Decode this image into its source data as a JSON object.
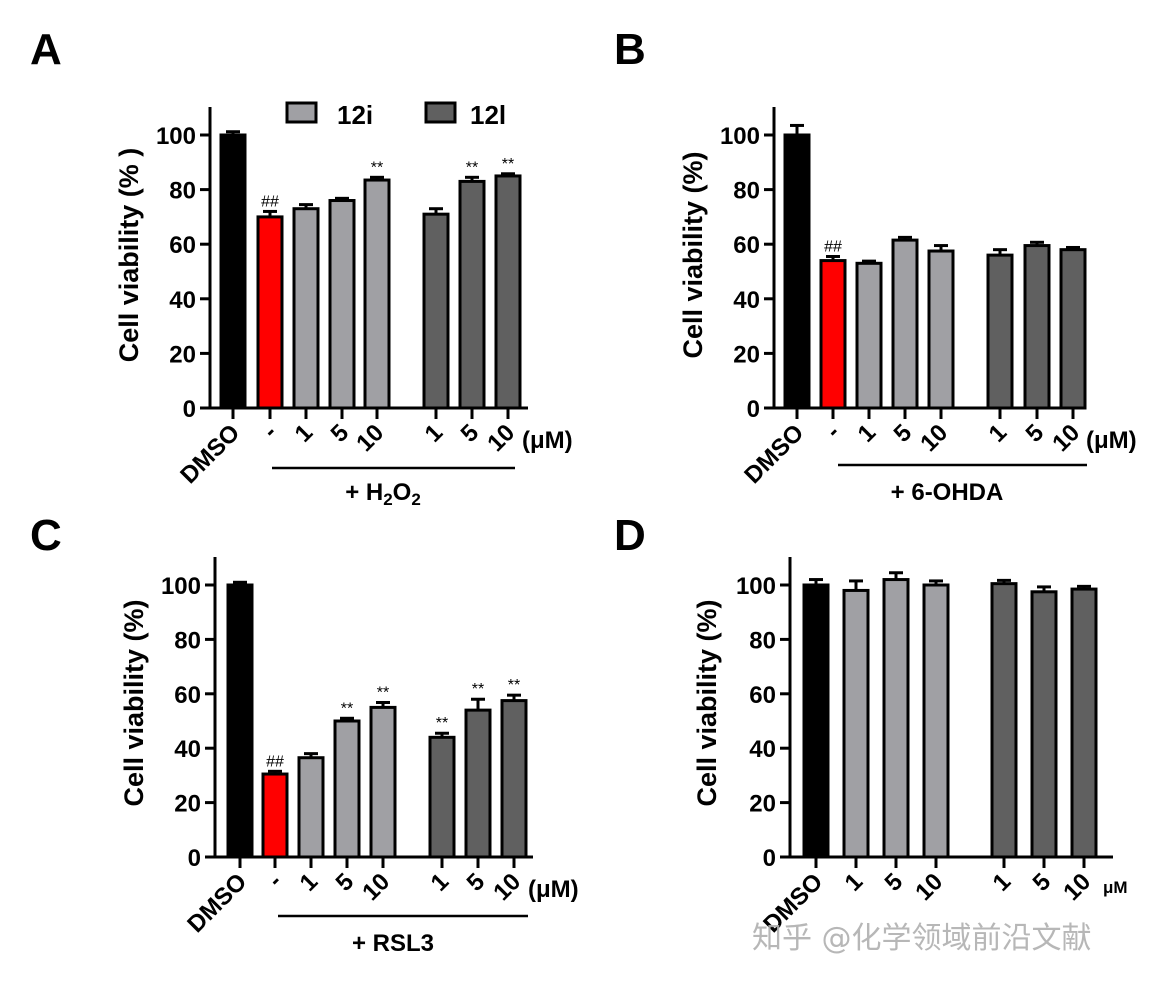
{
  "figure": {
    "watermark": "知乎 @化学领域前沿文献",
    "colors": {
      "dmso": "#000000",
      "model": "#ff0000",
      "12i": "#a0a0a4",
      "12l": "#606060",
      "outline": "#000000"
    },
    "legend": [
      {
        "label": "12i",
        "color_key": "12i"
      },
      {
        "label": "12l",
        "color_key": "12l"
      }
    ]
  },
  "chart_data": [
    {
      "panel": "A",
      "type": "bar",
      "ylabel": "Cell viability (% )",
      "ylim": [
        0,
        110
      ],
      "yticks": [
        0,
        20,
        40,
        60,
        80,
        100
      ],
      "unit_label": "(μM)",
      "treatment_label": "+ H₂O₂",
      "treatment_main": "+ H",
      "legend_shown": true,
      "legend_placement": "top",
      "categories": [
        "DMSO",
        "-",
        "1",
        "5",
        "10",
        "1",
        "5",
        "10"
      ],
      "groups": [
        "dmso",
        "model",
        "12i",
        "12i",
        "12i",
        "12l",
        "12l",
        "12l"
      ],
      "values": [
        100,
        70,
        73,
        76,
        83.5,
        71,
        83,
        85
      ],
      "errors": [
        1.2,
        2,
        1.5,
        0.8,
        1,
        2,
        1.5,
        0.8
      ],
      "annotations": [
        "",
        "##",
        "",
        "",
        "**",
        "",
        "**",
        "**"
      ]
    },
    {
      "panel": "B",
      "type": "bar",
      "ylabel": "Cell viability (%)",
      "ylim": [
        0,
        110
      ],
      "yticks": [
        0,
        20,
        40,
        60,
        80,
        100
      ],
      "unit_label": "(μM)",
      "treatment_label": "+ 6-OHDA",
      "legend_shown": false,
      "categories": [
        "DMSO",
        "-",
        "1",
        "5",
        "10",
        "1",
        "5",
        "10"
      ],
      "groups": [
        "dmso",
        "model",
        "12i",
        "12i",
        "12i",
        "12l",
        "12l",
        "12l"
      ],
      "values": [
        100,
        54,
        53,
        61.5,
        57.5,
        56,
        59.5,
        58
      ],
      "errors": [
        3.5,
        1.5,
        0.8,
        1,
        2,
        2,
        1.2,
        0.8
      ],
      "annotations": [
        "",
        "##",
        "",
        "",
        "",
        "",
        "",
        ""
      ]
    },
    {
      "panel": "C",
      "type": "bar",
      "ylabel": "Cell viability (%)",
      "ylim": [
        0,
        110
      ],
      "yticks": [
        0,
        20,
        40,
        60,
        80,
        100
      ],
      "unit_label": "(μM)",
      "treatment_label": "+ RSL3",
      "legend_shown": false,
      "categories": [
        "DMSO",
        "-",
        "1",
        "5",
        "10",
        "1",
        "5",
        "10"
      ],
      "groups": [
        "dmso",
        "model",
        "12i",
        "12i",
        "12i",
        "12l",
        "12l",
        "12l"
      ],
      "values": [
        100,
        30.5,
        36.5,
        50,
        55,
        44,
        54,
        57.5
      ],
      "errors": [
        1,
        1,
        1.5,
        1,
        1.8,
        1.5,
        4,
        2
      ],
      "annotations": [
        "",
        "##",
        "",
        "**",
        "**",
        "**",
        "**",
        "**"
      ]
    },
    {
      "panel": "D",
      "type": "bar",
      "ylabel": "Cell viability (%)",
      "ylim": [
        0,
        110
      ],
      "yticks": [
        0,
        20,
        40,
        60,
        80,
        100
      ],
      "unit_label": "μM",
      "treatment_label": "",
      "legend_shown": false,
      "categories": [
        "DMSO",
        "1",
        "5",
        "10",
        "1",
        "5",
        "10"
      ],
      "groups": [
        "dmso",
        "12i",
        "12i",
        "12i",
        "12l",
        "12l",
        "12l"
      ],
      "values": [
        100,
        98,
        102,
        100,
        100.5,
        97.5,
        98.5
      ],
      "errors": [
        2,
        3.5,
        2.5,
        1.5,
        1.2,
        1.8,
        1
      ],
      "annotations": [
        "",
        "",
        "",
        "",
        "",
        "",
        ""
      ]
    }
  ]
}
